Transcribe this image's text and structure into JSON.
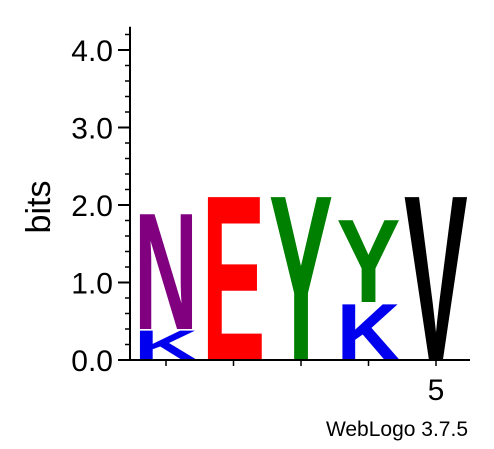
{
  "chart_data": {
    "type": "sequence-logo",
    "ylabel": "bits",
    "ylim": [
      0,
      4.3
    ],
    "y_ticks": [
      {
        "value": 0,
        "label": "0.0"
      },
      {
        "value": 1,
        "label": "1.0"
      },
      {
        "value": 2,
        "label": "2.0"
      },
      {
        "value": 3,
        "label": "3.0"
      },
      {
        "value": 4,
        "label": "4.0"
      }
    ],
    "y_minor_step": 0.2,
    "x_positions": [
      1,
      2,
      3,
      4,
      5
    ],
    "x_tick_labels": [
      {
        "position": 5,
        "label": "5"
      }
    ],
    "stacks": [
      {
        "position": 1,
        "letters": [
          {
            "char": "K",
            "color": "#0000ee",
            "height": 0.4
          },
          {
            "char": "N",
            "color": "#800080",
            "height": 1.55
          }
        ]
      },
      {
        "position": 2,
        "letters": [
          {
            "char": "E",
            "color": "#ff0000",
            "height": 2.2
          }
        ]
      },
      {
        "position": 3,
        "letters": [
          {
            "char": "Y",
            "color": "#008000",
            "height": 2.2
          }
        ]
      },
      {
        "position": 4,
        "letters": [
          {
            "char": "K",
            "color": "#0000ee",
            "height": 0.75
          },
          {
            "char": "Y",
            "color": "#008000",
            "height": 1.1
          }
        ]
      },
      {
        "position": 5,
        "letters": [
          {
            "char": "V",
            "color": "#000000",
            "height": 2.2
          }
        ]
      }
    ],
    "footer": "WebLogo 3.7.5"
  }
}
